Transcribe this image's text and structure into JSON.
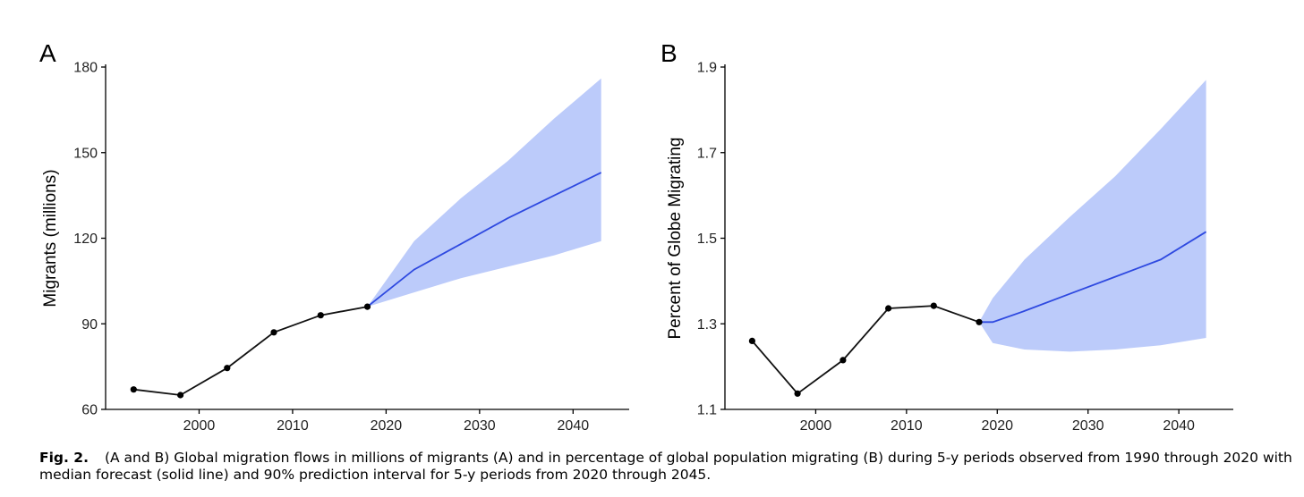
{
  "chart_data": [
    {
      "type": "line",
      "panel_label": "A",
      "title": "",
      "xlabel": "",
      "ylabel": "Migrants (millions)",
      "xlim": [
        1990,
        2046
      ],
      "ylim": [
        60,
        180
      ],
      "x_ticks": [
        2000,
        2010,
        2020,
        2030,
        2040
      ],
      "y_ticks": [
        60,
        90,
        120,
        150,
        180
      ],
      "grid": false,
      "legend": "none",
      "series": [
        {
          "role": "observed",
          "color": "#111111",
          "x": [
            1993,
            1998,
            2003,
            2008,
            2013,
            2018
          ],
          "y": [
            67,
            65,
            74.5,
            87,
            93,
            96
          ]
        },
        {
          "role": "median forecast",
          "color": "#2e49e0",
          "x": [
            2018,
            2023,
            2028,
            2033,
            2038,
            2043
          ],
          "y": [
            96,
            109,
            118,
            127,
            135,
            143
          ]
        },
        {
          "role": "90% prediction interval",
          "color": "#bccbfa",
          "x": [
            2018,
            2023,
            2028,
            2033,
            2038,
            2043
          ],
          "lower": [
            96,
            101,
            106,
            110,
            114,
            119
          ],
          "upper": [
            96,
            119,
            134,
            147,
            162,
            176
          ]
        }
      ]
    },
    {
      "type": "line",
      "panel_label": "B",
      "title": "",
      "xlabel": "",
      "ylabel": "Percent of Globe Migrating",
      "xlim": [
        1990,
        2046
      ],
      "ylim": [
        1.1,
        1.9
      ],
      "x_ticks": [
        2000,
        2010,
        2020,
        2030,
        2040
      ],
      "y_ticks": [
        1.1,
        1.3,
        1.5,
        1.7,
        1.9
      ],
      "y_tick_labels": [
        "1.1",
        "1.3",
        "1.5",
        "1.7",
        "1.9"
      ],
      "grid": false,
      "legend": "none",
      "series": [
        {
          "role": "observed",
          "color": "#111111",
          "x": [
            1993,
            1998,
            2003,
            2008,
            2013,
            2018
          ],
          "y": [
            1.26,
            1.137,
            1.215,
            1.336,
            1.342,
            1.304
          ]
        },
        {
          "role": "median forecast",
          "color": "#2e49e0",
          "x": [
            2018,
            2019.5,
            2023,
            2028,
            2033,
            2038,
            2043
          ],
          "y": [
            1.304,
            1.304,
            1.33,
            1.37,
            1.41,
            1.45,
            1.515
          ]
        },
        {
          "role": "90% prediction interval",
          "color": "#bccbfa",
          "x": [
            2018,
            2019.5,
            2023,
            2028,
            2033,
            2038,
            2043
          ],
          "lower": [
            1.304,
            1.255,
            1.24,
            1.235,
            1.24,
            1.25,
            1.267
          ],
          "upper": [
            1.304,
            1.36,
            1.45,
            1.55,
            1.645,
            1.755,
            1.87
          ]
        }
      ]
    }
  ],
  "caption": {
    "label": "Fig. 2.",
    "text": "(A and B) Global migration flows in millions of migrants (A) and in percentage of global population migrating (B) during 5-y periods observed from 1990 through 2020 with median forecast (solid line) and 90% prediction interval for 5-y periods from 2020 through 2045."
  }
}
